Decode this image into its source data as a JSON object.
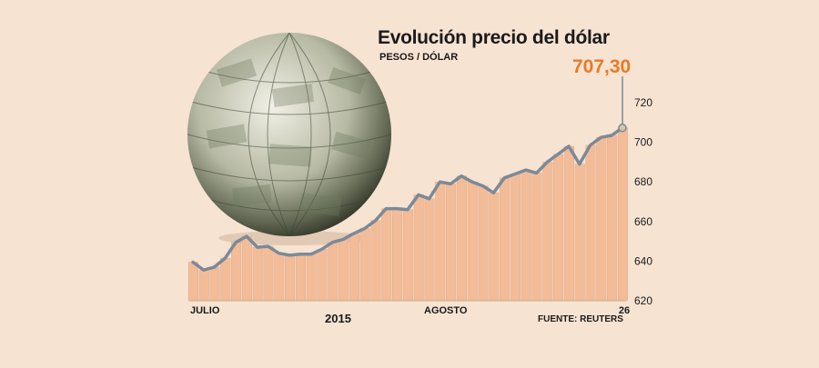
{
  "header": {
    "title": "Evolución precio del dólar",
    "subtitle": "PESOS / DÓLAR"
  },
  "highlight": {
    "value_label": "707,30"
  },
  "axis_labels": {
    "x_start": "JULIO",
    "x_mid": "AGOSTO",
    "x_end": "26",
    "year": "2015"
  },
  "source": "FUENTE: REUTERS",
  "illustration": {
    "name": "globe-of-dollar-bills"
  },
  "colors": {
    "background": "#f7e3d2",
    "bars": "#f2bc98",
    "line": "#7b8a98",
    "highlight": "#e97a25"
  },
  "chart_data": {
    "type": "line",
    "title": "Evolución precio del dólar",
    "subtitle": "PESOS / DÓLAR",
    "xlabel": "",
    "ylabel": "",
    "ylim": [
      620,
      720
    ],
    "yticks": [
      620,
      640,
      660,
      680,
      700,
      720
    ],
    "x_tick_labels": [
      "JULIO",
      "AGOSTO",
      "26"
    ],
    "grid": false,
    "has_area_bars": true,
    "last_value_label": "707,30",
    "values": [
      639.5,
      635.5,
      637.0,
      641.5,
      649.5,
      652.5,
      647.0,
      647.5,
      644.0,
      643.0,
      643.5,
      643.5,
      646.0,
      649.5,
      651.0,
      654.0,
      656.5,
      660.5,
      666.5,
      666.5,
      666.0,
      673.5,
      671.5,
      680.0,
      679.0,
      683.0,
      680.0,
      678.0,
      674.5,
      682.0,
      684.0,
      686.0,
      684.5,
      690.0,
      694.0,
      698.0,
      689.0,
      698.5,
      702.5,
      703.5,
      707.3
    ]
  }
}
